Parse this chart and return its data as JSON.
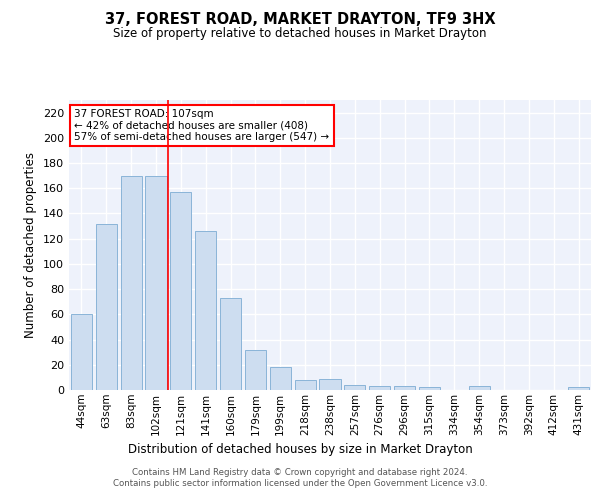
{
  "title": "37, FOREST ROAD, MARKET DRAYTON, TF9 3HX",
  "subtitle": "Size of property relative to detached houses in Market Drayton",
  "xlabel": "Distribution of detached houses by size in Market Drayton",
  "ylabel": "Number of detached properties",
  "bar_labels": [
    "44sqm",
    "63sqm",
    "83sqm",
    "102sqm",
    "121sqm",
    "141sqm",
    "160sqm",
    "179sqm",
    "199sqm",
    "218sqm",
    "238sqm",
    "257sqm",
    "276sqm",
    "296sqm",
    "315sqm",
    "334sqm",
    "354sqm",
    "373sqm",
    "392sqm",
    "412sqm",
    "431sqm"
  ],
  "bar_values": [
    60,
    132,
    170,
    170,
    157,
    126,
    73,
    32,
    18,
    8,
    9,
    4,
    3,
    3,
    2,
    0,
    3,
    0,
    0,
    0,
    2
  ],
  "bar_color": "#cdddf0",
  "bar_edge_color": "#8ab4d8",
  "background_color": "#eef2fb",
  "grid_color": "#ffffff",
  "red_line_x": 3.5,
  "annotation_text": "37 FOREST ROAD: 107sqm\n← 42% of detached houses are smaller (408)\n57% of semi-detached houses are larger (547) →",
  "annotation_box_color": "white",
  "annotation_box_edge": "red",
  "ylim": [
    0,
    230
  ],
  "yticks": [
    0,
    20,
    40,
    60,
    80,
    100,
    120,
    140,
    160,
    180,
    200,
    220
  ],
  "footer_line1": "Contains HM Land Registry data © Crown copyright and database right 2024.",
  "footer_line2": "Contains public sector information licensed under the Open Government Licence v3.0."
}
